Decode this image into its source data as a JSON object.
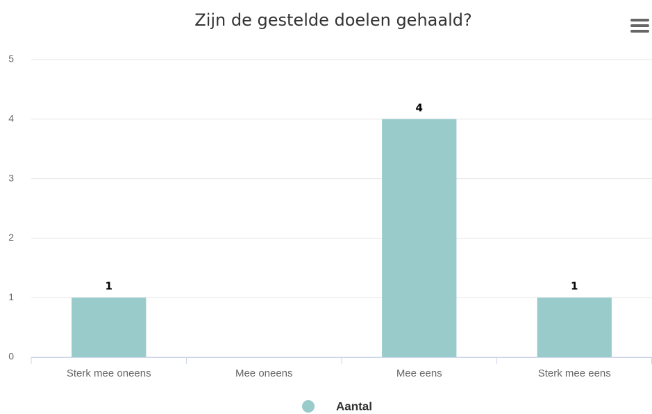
{
  "chart_data": {
    "type": "bar",
    "title": "Zijn de gestelde doelen gehaald?",
    "categories": [
      "Sterk mee oneens",
      "Mee oneens",
      "Mee eens",
      "Sterk mee eens"
    ],
    "series": [
      {
        "name": "Aantal",
        "color": "#99cbcb",
        "values": [
          1,
          0,
          4,
          1
        ],
        "value_labels": [
          "1",
          null,
          "4",
          "1"
        ]
      }
    ],
    "ylim": [
      0,
      5
    ],
    "yticks": [
      0,
      1,
      2,
      3,
      4,
      5
    ],
    "grid": true,
    "legend": "bottom"
  }
}
